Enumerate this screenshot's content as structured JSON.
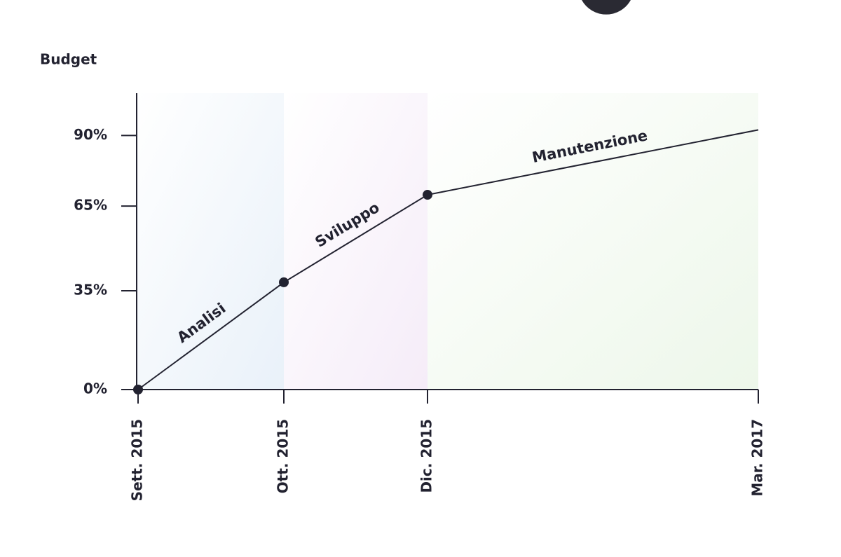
{
  "chart_data": {
    "type": "line",
    "y_label": "Budget",
    "categories": [
      "Sett. 2015",
      "Ott. 2015",
      "Dic. 2015",
      "Mar. 2017"
    ],
    "values": [
      0,
      38,
      69,
      92
    ],
    "color": "#222230",
    "ylim": [
      0,
      105
    ],
    "yticks": [
      {
        "value": 0,
        "label": "0%"
      },
      {
        "value": 35,
        "label": "35%"
      },
      {
        "value": 65,
        "label": "65%"
      },
      {
        "value": 90,
        "label": "90%"
      }
    ],
    "phases": [
      {
        "name": "Analisi",
        "color": "#e9f1f9"
      },
      {
        "name": "Sviluppo",
        "color": "#f5ecf8"
      },
      {
        "name": "Manutenzione",
        "color": "#edf7ea"
      }
    ]
  }
}
